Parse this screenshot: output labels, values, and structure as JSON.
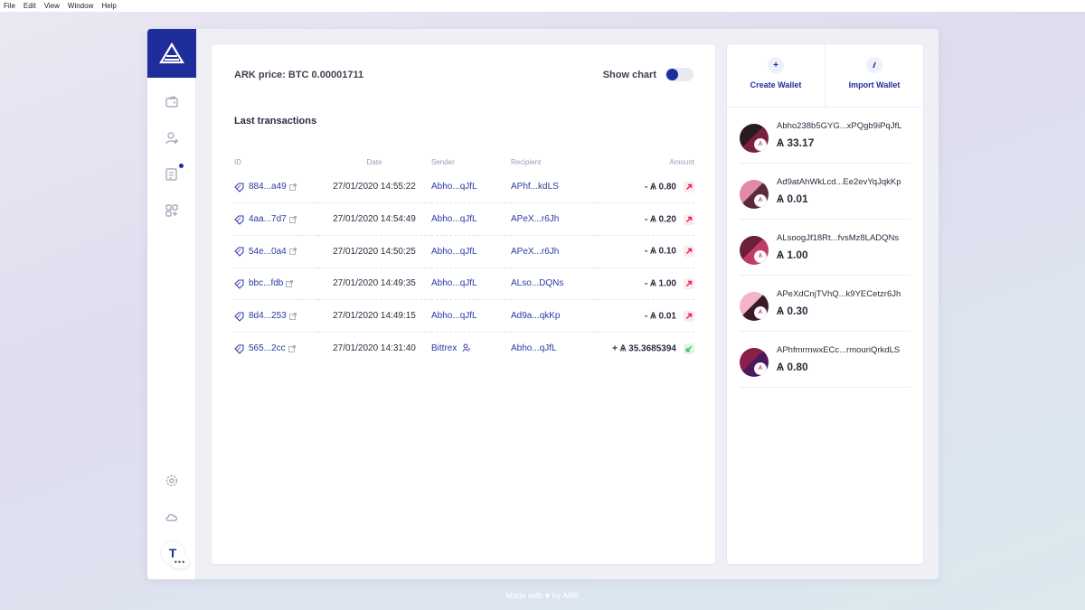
{
  "menubar": {
    "items": [
      "File",
      "Edit",
      "View",
      "Window",
      "Help"
    ]
  },
  "main": {
    "price_label": "ARK price: BTC 0.00001711",
    "show_chart_label": "Show chart",
    "section_title": "Last transactions",
    "columns": {
      "id": "ID",
      "date": "Date",
      "sender": "Sender",
      "recipient": "Recipient",
      "amount": "Amount"
    },
    "transactions": [
      {
        "id": "884...a49",
        "date": "27/01/2020 14:55:22",
        "sender": "Abho...qJfL",
        "recipient": "APhf...kdLS",
        "amount": "- Ѧ 0.80",
        "direction": "out"
      },
      {
        "id": "4aa...7d7",
        "date": "27/01/2020 14:54:49",
        "sender": "Abho...qJfL",
        "recipient": "APeX...r6Jh",
        "amount": "- Ѧ 0.20",
        "direction": "out"
      },
      {
        "id": "54e...0a4",
        "date": "27/01/2020 14:50:25",
        "sender": "Abho...qJfL",
        "recipient": "APeX...r6Jh",
        "amount": "- Ѧ 0.10",
        "direction": "out"
      },
      {
        "id": "bbc...fdb",
        "date": "27/01/2020 14:49:35",
        "sender": "Abho...qJfL",
        "recipient": "ALso...DQNs",
        "amount": "- Ѧ 1.00",
        "direction": "out"
      },
      {
        "id": "8d4...253",
        "date": "27/01/2020 14:49:15",
        "sender": "Abho...qJfL",
        "recipient": "Ad9a...qkKp",
        "amount": "- Ѧ 0.01",
        "direction": "out"
      },
      {
        "id": "565...2cc",
        "date": "27/01/2020 14:31:40",
        "sender": "Bittrex",
        "recipient": "Abho...qJfL",
        "amount": "+ Ѧ 35.3685394",
        "direction": "in"
      }
    ]
  },
  "right": {
    "create_wallet": "Create Wallet",
    "import_wallet": "Import Wallet",
    "wallets": [
      {
        "address": "Abho238b5GYG...xPQgb9iPqJfL",
        "balance": "Ѧ 33.17",
        "colors": [
          "#2a1a22",
          "#7a1f3d"
        ]
      },
      {
        "address": "Ad9atAhWkLcd...Ee2evYqJqkKp",
        "balance": "Ѧ 0.01",
        "colors": [
          "#e08aa8",
          "#5a2a3a"
        ]
      },
      {
        "address": "ALsoogJf18Rt...fvsMz8LADQNs",
        "balance": "Ѧ 1.00",
        "colors": [
          "#6a1f3a",
          "#c23a6a"
        ]
      },
      {
        "address": "APeXdCnjTVhQ...k9YECetzr6Jh",
        "balance": "Ѧ 0.30",
        "colors": [
          "#f2b6c8",
          "#3a1a2a"
        ]
      },
      {
        "address": "APhfmrmwxECc...rmouriQrkdLS",
        "balance": "Ѧ 0.80",
        "colors": [
          "#8a1f4a",
          "#4a1a5a"
        ]
      }
    ]
  },
  "sidebar": {
    "user_initial": "T",
    "more": "•••"
  },
  "footer": {
    "text": "Made with ♥ by ARK"
  },
  "colors": {
    "brand": "#1e2d9c",
    "out": "#e0245e",
    "in": "#2bbf5a"
  }
}
